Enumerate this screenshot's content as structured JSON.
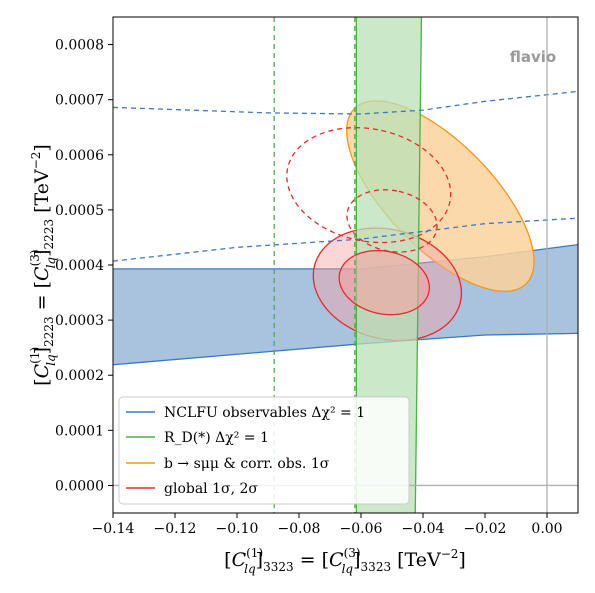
{
  "chart_data": {
    "type": "contour",
    "xlabel": "[C_lq^(1)]_3323 = [C_lq^(3)]_3323 [TeV^-2]",
    "ylabel": "[C_lq^(1)]_2223 = [C_lq^(3)]_2223 [TeV^-2]",
    "xlim": [
      -0.14,
      0.01
    ],
    "ylim": [
      -5e-05,
      0.00085
    ],
    "x_ticks": [
      -0.14,
      -0.12,
      -0.1,
      -0.08,
      -0.06,
      -0.04,
      -0.02,
      0.0
    ],
    "x_tick_labels": [
      "−0.14",
      "−0.12",
      "−0.10",
      "−0.08",
      "−0.06",
      "−0.04",
      "−0.02",
      "0.00"
    ],
    "y_ticks": [
      0.0,
      0.0001,
      0.0002,
      0.0003,
      0.0004,
      0.0005,
      0.0006,
      0.0007,
      0.0008
    ],
    "y_tick_labels": [
      "0.0000",
      "0.0001",
      "0.0002",
      "0.0003",
      "0.0004",
      "0.0005",
      "0.0006",
      "0.0007",
      "0.0008"
    ],
    "brand_label": "flavio",
    "reference_lines": {
      "x": 0.0,
      "y": 0.0,
      "color": "#b0b0b0"
    },
    "legend_position": "lower-left",
    "series": [
      {
        "name": "NCLFU observables Δχ² = 1",
        "legend_text": "NCLFU observables Δχ² = 1",
        "color": "#3b78c2",
        "fill": "#a9c3df",
        "band_upper": [
          [
            -0.14,
            0.000393
          ],
          [
            -0.06,
            0.000393
          ],
          [
            -0.02,
            0.000415
          ],
          [
            0.01,
            0.000437
          ]
        ],
        "band_lower": [
          [
            -0.14,
            0.000219
          ],
          [
            -0.06,
            0.000257
          ],
          [
            -0.02,
            0.000273
          ],
          [
            0.01,
            0.000276
          ]
        ],
        "dashed_upper": [
          [
            -0.14,
            0.000686
          ],
          [
            -0.09,
            0.000676
          ],
          [
            -0.06,
            0.000674
          ],
          [
            -0.04,
            0.000681
          ],
          [
            -0.02,
            0.000697
          ],
          [
            0.01,
            0.000715
          ]
        ],
        "dashed_lower": [
          [
            -0.14,
            0.000407
          ],
          [
            -0.1,
            0.000432
          ],
          [
            -0.06,
            0.000447
          ],
          [
            -0.02,
            0.000475
          ],
          [
            0.01,
            0.000485
          ]
        ]
      },
      {
        "name": "R_D(*) Δχ² = 1",
        "legend_text": "R_D(*) Δχ² = 1",
        "color": "#4daf4a",
        "fill": "#b9e0b6",
        "band_x_top": [
          -0.0615,
          -0.0405
        ],
        "band_x_bottom": [
          -0.0615,
          -0.0425
        ],
        "dashed_x": [
          -0.088,
          -0.062
        ]
      },
      {
        "name": "b → sμμ & corr. obs. 1σ",
        "legend_text": "b → sμμ & corr. obs. 1σ",
        "color": "#f0961e",
        "fill": "#fcd29c",
        "ellipse": {
          "cx": -0.0344,
          "cy": 0.000525,
          "rx": 0.0165,
          "ry": 0.00023,
          "angle_deg": 47
        }
      },
      {
        "name": "global 1σ, 2σ",
        "legend_text": "global 1σ, 2σ",
        "color": "#e32b2b",
        "fill": "#f5a3a3",
        "ellipse_1sigma": {
          "cx": -0.0525,
          "cy": 0.000368,
          "rx": 0.0095,
          "ry": 8.8e-05,
          "angle_deg": 80
        },
        "ellipse_2sigma": {
          "cx": -0.0515,
          "cy": 0.000365,
          "rx": 0.0166,
          "ry": 0.000145,
          "angle_deg": 78
        },
        "dashed_1sigma": {
          "cx": -0.05,
          "cy": 0.00048,
          "rx": 0.0092,
          "ry": 8.8e-05,
          "angle_deg": 80
        },
        "dashed_2sigma": {
          "cx": -0.0575,
          "cy": 0.000545,
          "rx": 0.017,
          "ry": 0.00016,
          "angle_deg": 80
        }
      }
    ]
  }
}
